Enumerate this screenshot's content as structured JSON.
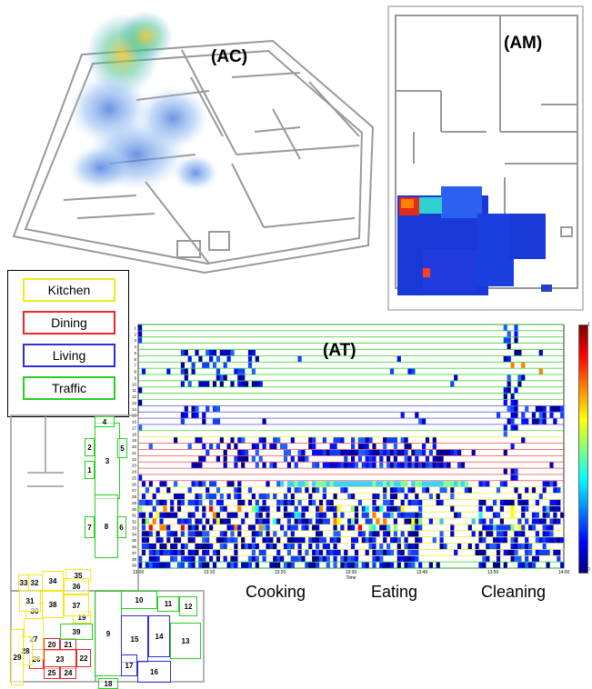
{
  "panels": {
    "ac": "(AC)",
    "am": "(AM)",
    "at": "(AT)"
  },
  "legend": [
    {
      "label": "Kitchen",
      "color": "#f4e71c"
    },
    {
      "label": "Dining",
      "color": "#e8282a"
    },
    {
      "label": "Living",
      "color": "#2c2ed8"
    },
    {
      "label": "Traffic",
      "color": "#27d020"
    }
  ],
  "phases": {
    "cooking": "Cooking",
    "eating": "Eating",
    "cleaning": "Cleaning"
  },
  "colorbar": {
    "max": "1",
    "min": "0"
  },
  "chart_data": {
    "type": "heatmap",
    "xlabel": "Time",
    "x_ticks": [
      "13:00",
      "13:10",
      "13:20",
      "13:30",
      "13:40",
      "13:50",
      "14:00"
    ],
    "y_ticks": [
      "1",
      "2",
      "3",
      "4",
      "5",
      "6",
      "7",
      "8",
      "9",
      "10",
      "11",
      "12",
      "13",
      "14",
      "15",
      "16",
      "17",
      "18",
      "19",
      "20",
      "21",
      "22",
      "23",
      "24",
      "25",
      "26",
      "27",
      "28",
      "29",
      "30",
      "31",
      "32",
      "33",
      "34",
      "35",
      "36",
      "37",
      "38",
      "39"
    ],
    "clim": [
      0,
      1
    ]
  },
  "rooms": [
    {
      "id": "1",
      "cat": "traffic"
    },
    {
      "id": "2",
      "cat": "traffic"
    },
    {
      "id": "3",
      "cat": "traffic"
    },
    {
      "id": "4",
      "cat": "traffic"
    },
    {
      "id": "5",
      "cat": "traffic"
    },
    {
      "id": "6",
      "cat": "traffic"
    },
    {
      "id": "7",
      "cat": "traffic"
    },
    {
      "id": "8",
      "cat": "traffic"
    },
    {
      "id": "9",
      "cat": "traffic"
    },
    {
      "id": "10",
      "cat": "traffic"
    },
    {
      "id": "11",
      "cat": "traffic"
    },
    {
      "id": "12",
      "cat": "traffic"
    },
    {
      "id": "13",
      "cat": "traffic"
    },
    {
      "id": "14",
      "cat": "living"
    },
    {
      "id": "15",
      "cat": "living"
    },
    {
      "id": "16",
      "cat": "living"
    },
    {
      "id": "17",
      "cat": "living"
    },
    {
      "id": "18",
      "cat": "traffic"
    },
    {
      "id": "19",
      "cat": "kitchen"
    },
    {
      "id": "20",
      "cat": "dining"
    },
    {
      "id": "21",
      "cat": "dining"
    },
    {
      "id": "22",
      "cat": "dining"
    },
    {
      "id": "23",
      "cat": "dining"
    },
    {
      "id": "24",
      "cat": "dining"
    },
    {
      "id": "25",
      "cat": "dining"
    },
    {
      "id": "26",
      "cat": "dining"
    },
    {
      "id": "27",
      "cat": "kitchen"
    },
    {
      "id": "28",
      "cat": "kitchen"
    },
    {
      "id": "29",
      "cat": "kitchen"
    },
    {
      "id": "30",
      "cat": "kitchen"
    },
    {
      "id": "31",
      "cat": "kitchen"
    },
    {
      "id": "32",
      "cat": "kitchen"
    },
    {
      "id": "33",
      "cat": "kitchen"
    },
    {
      "id": "34",
      "cat": "kitchen"
    },
    {
      "id": "35",
      "cat": "kitchen"
    },
    {
      "id": "36",
      "cat": "kitchen"
    },
    {
      "id": "37",
      "cat": "kitchen"
    },
    {
      "id": "38",
      "cat": "kitchen"
    },
    {
      "id": "39",
      "cat": "traffic"
    }
  ]
}
